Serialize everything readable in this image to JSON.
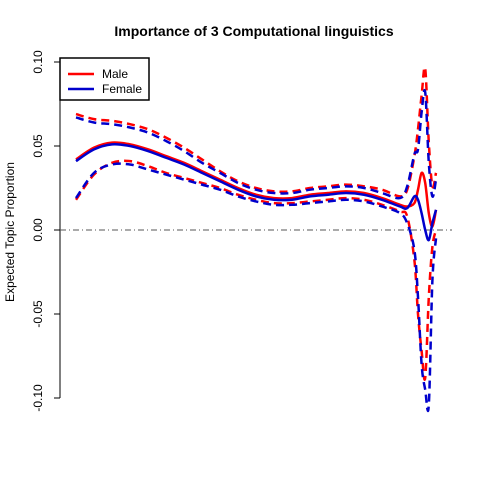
{
  "chart_data": {
    "type": "line",
    "title": "Importance of 3 Computational linguistics",
    "xlabel": "",
    "ylabel": "Expected Topic Proportion",
    "ylim": [
      -0.1,
      0.1
    ],
    "yticks": [
      "-0.10",
      "-0.05",
      "0.00",
      "0.05",
      "0.10"
    ],
    "yticks_values": [
      -0.1,
      -0.05,
      0.0,
      0.05,
      0.1
    ],
    "xlim": [
      0,
      100
    ],
    "x_axis_drawn": false,
    "reference_line": 0.0,
    "legend_position": "top-left",
    "legend": [
      {
        "name": "Male",
        "color": "#ff0000"
      },
      {
        "name": "Female",
        "color": "#0000cc"
      }
    ],
    "x": [
      0,
      5,
      10,
      15,
      20,
      25,
      30,
      35,
      40,
      45,
      50,
      55,
      60,
      65,
      70,
      75,
      80,
      85,
      90,
      92,
      94,
      95,
      96,
      97,
      98,
      99,
      100
    ],
    "series": [
      {
        "name": "Male",
        "color": "#ff0000",
        "estimate": [
          0.042,
          0.049,
          0.052,
          0.051,
          0.048,
          0.044,
          0.04,
          0.035,
          0.03,
          0.025,
          0.021,
          0.019,
          0.019,
          0.021,
          0.022,
          0.023,
          0.022,
          0.019,
          0.015,
          0.014,
          0.016,
          0.024,
          0.034,
          0.028,
          0.01,
          0.002,
          0.012
        ],
        "upper": [
          0.069,
          0.066,
          0.065,
          0.063,
          0.06,
          0.055,
          0.049,
          0.042,
          0.035,
          0.029,
          0.025,
          0.023,
          0.023,
          0.025,
          0.026,
          0.027,
          0.026,
          0.024,
          0.02,
          0.024,
          0.044,
          0.06,
          0.08,
          0.096,
          0.052,
          0.026,
          0.034
        ],
        "lower": [
          0.018,
          0.033,
          0.04,
          0.041,
          0.038,
          0.034,
          0.031,
          0.028,
          0.025,
          0.021,
          0.018,
          0.016,
          0.016,
          0.017,
          0.018,
          0.019,
          0.018,
          0.015,
          0.011,
          0.008,
          -0.018,
          -0.05,
          -0.072,
          -0.088,
          -0.04,
          -0.01,
          0.0
        ]
      },
      {
        "name": "Female",
        "color": "#0000cc",
        "estimate": [
          0.041,
          0.048,
          0.051,
          0.05,
          0.047,
          0.043,
          0.039,
          0.034,
          0.029,
          0.024,
          0.02,
          0.018,
          0.018,
          0.02,
          0.021,
          0.022,
          0.021,
          0.018,
          0.014,
          0.013,
          0.02,
          0.018,
          0.01,
          0.0,
          -0.006,
          0.004,
          0.012
        ],
        "upper": [
          0.067,
          0.064,
          0.063,
          0.061,
          0.058,
          0.053,
          0.047,
          0.04,
          0.034,
          0.028,
          0.024,
          0.022,
          0.022,
          0.024,
          0.025,
          0.026,
          0.025,
          0.022,
          0.019,
          0.026,
          0.045,
          0.048,
          0.07,
          0.082,
          0.04,
          0.02,
          0.03
        ],
        "lower": [
          0.019,
          0.034,
          0.039,
          0.039,
          0.036,
          0.033,
          0.03,
          0.027,
          0.024,
          0.02,
          0.017,
          0.015,
          0.015,
          0.016,
          0.017,
          0.018,
          0.017,
          0.014,
          0.01,
          0.004,
          -0.012,
          -0.04,
          -0.08,
          -0.095,
          -0.104,
          -0.03,
          -0.005
        ]
      }
    ]
  }
}
